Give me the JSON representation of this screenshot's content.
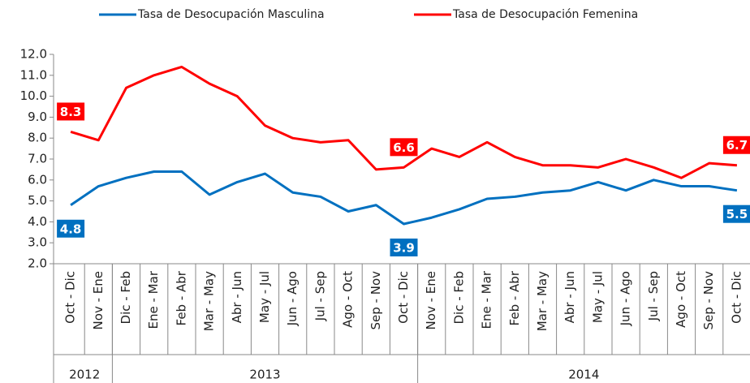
{
  "chart_data": {
    "type": "line",
    "categories": [
      "Oct - Dic",
      "Nov - Ene",
      "Dic - Feb",
      "Ene - Mar",
      "Feb - Abr",
      "Mar - May",
      "Abr - Jun",
      "May - Jul",
      "Jun - Ago",
      "Jul - Sep",
      "Ago - Oct",
      "Sep - Nov",
      "Oct - Dic",
      "Nov - Ene",
      "Dic - Feb",
      "Ene - Mar",
      "Feb - Abr",
      "Mar - May",
      "Abr - Jun",
      "May - Jul",
      "Jun - Ago",
      "Jul - Sep",
      "Ago - Oct",
      "Sep - Nov",
      "Oct - Dic"
    ],
    "x_groups": [
      {
        "label": "2012",
        "span": 2
      },
      {
        "label": "2013",
        "span": 11
      },
      {
        "label": "2014",
        "span": 12
      }
    ],
    "series": [
      {
        "name": "Tasa de Desocupación Masculina",
        "color": "#0070c0",
        "values": [
          4.8,
          5.7,
          6.1,
          6.4,
          6.4,
          5.3,
          5.9,
          6.3,
          5.4,
          5.2,
          4.5,
          4.8,
          3.9,
          4.2,
          4.6,
          5.1,
          5.2,
          5.4,
          5.5,
          5.9,
          5.5,
          6.0,
          5.7,
          5.7,
          5.5
        ],
        "value_labels": [
          "4.8",
          null,
          null,
          null,
          null,
          null,
          null,
          null,
          null,
          null,
          null,
          null,
          "3.9",
          null,
          null,
          null,
          null,
          null,
          null,
          null,
          null,
          null,
          null,
          null,
          "5.5"
        ]
      },
      {
        "name": "Tasa de Desocupación Femenina",
        "color": "#ff0000",
        "values": [
          8.3,
          7.9,
          10.4,
          11.0,
          11.4,
          10.6,
          10.0,
          8.6,
          8.0,
          7.8,
          7.9,
          6.5,
          6.6,
          7.5,
          7.1,
          7.8,
          7.1,
          6.7,
          6.7,
          6.6,
          7.0,
          6.6,
          6.1,
          6.8,
          6.7
        ],
        "value_labels": [
          "8.3",
          null,
          null,
          null,
          null,
          null,
          null,
          null,
          null,
          null,
          null,
          null,
          "6.6",
          null,
          null,
          null,
          null,
          null,
          null,
          null,
          null,
          null,
          null,
          null,
          "6.7"
        ]
      }
    ],
    "ylim": [
      2.0,
      12.0
    ],
    "yticks": [
      {
        "value": 2.0,
        "label": "2.0"
      },
      {
        "value": 3.0,
        "label": "3.0"
      },
      {
        "value": 4.0,
        "label": "4.0"
      },
      {
        "value": 5.0,
        "label": "5.0"
      },
      {
        "value": 6.0,
        "label": "6.0"
      },
      {
        "value": 7.0,
        "label": "7.0"
      },
      {
        "value": 8.0,
        "label": "8.0"
      },
      {
        "value": 9.0,
        "label": "9.0"
      },
      {
        "value": 10.0,
        "label": "10.0"
      },
      {
        "value": 11.0,
        "label": "11.0"
      },
      {
        "value": 12.0,
        "label": "12.0"
      }
    ],
    "legend": "top",
    "grid": false
  }
}
